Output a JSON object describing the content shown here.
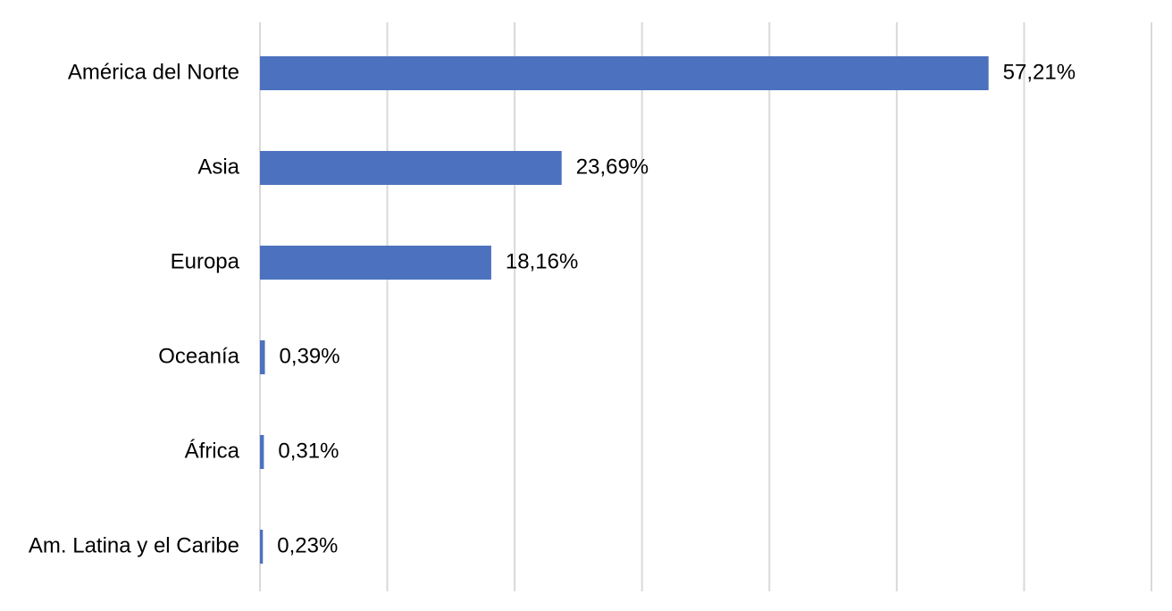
{
  "chart_data": {
    "type": "bar",
    "orientation": "horizontal",
    "categories": [
      "América del Norte",
      "Asia",
      "Europa",
      "Oceanía",
      "África",
      "Am. Latina y el Caribe"
    ],
    "values": [
      57.21,
      23.69,
      18.16,
      0.39,
      0.31,
      0.23
    ],
    "data_labels": [
      "57,21%",
      "23,69%",
      "18,16%",
      "0,39%",
      "0,31%",
      "0,23%"
    ],
    "xlim": [
      0,
      70
    ],
    "x_gridline_step": 10,
    "grid": true,
    "legend": "none",
    "bar_color": "#4c72bf",
    "grid_color": "#d9d9d9"
  }
}
